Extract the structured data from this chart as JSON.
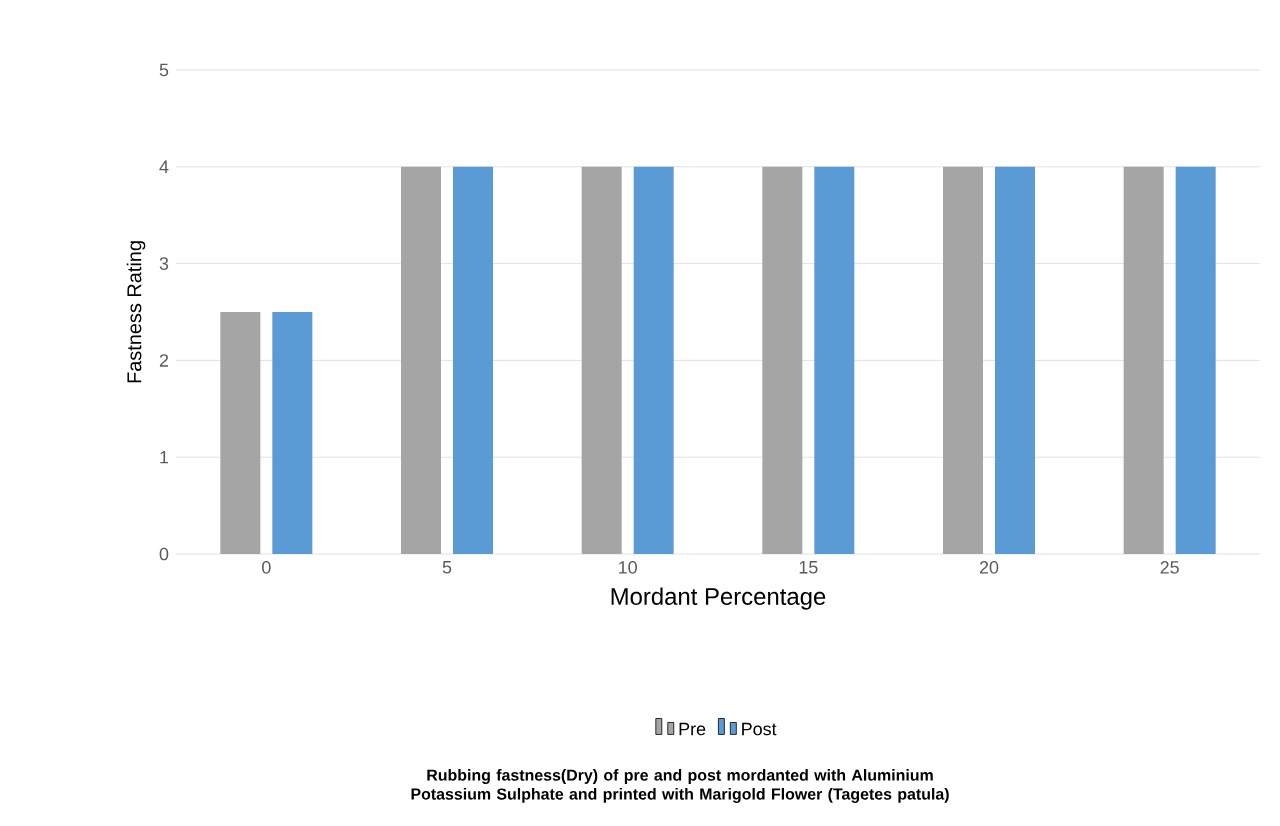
{
  "chart_data": {
    "type": "bar",
    "xlabel": "Mordant Percentage",
    "ylabel": "Fastness Rating",
    "categories": [
      "0",
      "5",
      "10",
      "15",
      "20",
      "25"
    ],
    "series": [
      {
        "name": "Pre",
        "color": "#a5a5a5",
        "values": [
          2.5,
          4,
          4,
          4,
          4,
          4
        ]
      },
      {
        "name": "Post",
        "color": "#5b9bd5",
        "values": [
          2.5,
          4,
          4,
          4,
          4,
          4
        ]
      }
    ],
    "ylim": [
      0,
      5
    ],
    "yticks": [
      0,
      1,
      2,
      3,
      4,
      5
    ],
    "grid": "y",
    "legend": "bottom",
    "annotations": [
      "Rubbing fastness(Dry) of pre and post mordanted with Aluminium Potassium Sulphate and printed with Marigold Flower (Tagetes patula)"
    ]
  }
}
